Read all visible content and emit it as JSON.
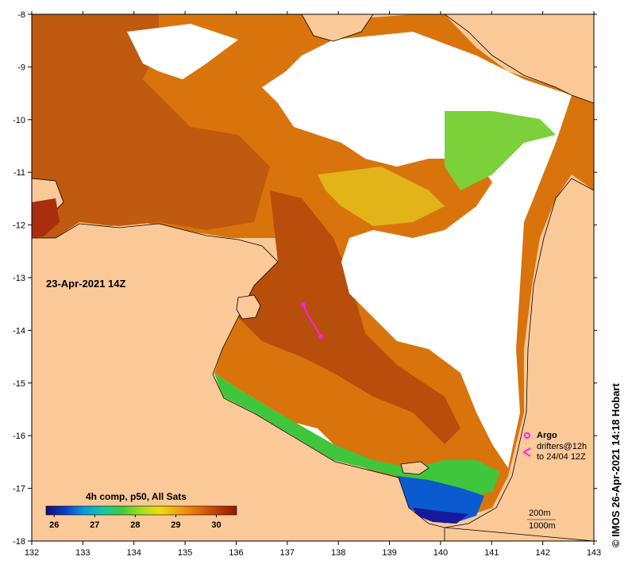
{
  "map": {
    "timestamp_label": "23-Apr-2021 14Z",
    "credit": "© IMOS 26-Apr-2021 14:18 Hobart",
    "lon_ticks": [
      "132",
      "133",
      "134",
      "135",
      "136",
      "137",
      "138",
      "139",
      "140",
      "141",
      "142",
      "143"
    ],
    "lat_ticks": [
      "-8",
      "-9",
      "-10",
      "-11",
      "-12",
      "-13",
      "-14",
      "-15",
      "-16",
      "-17",
      "-18"
    ],
    "lon_range": [
      132,
      143
    ],
    "lat_range": [
      -8,
      -18
    ]
  },
  "legend": {
    "title": "4h comp, p50, All Sats",
    "ticks": [
      "26",
      "27",
      "28",
      "29",
      "30"
    ],
    "argo_label": "Argo",
    "drifters_line1": "drifters@12h",
    "drifters_line2": "to 24/04 12Z",
    "contour_200": "200m",
    "contour_1000": "1000m"
  },
  "colors": {
    "land": "#fbc898",
    "cloud": "#ffffff",
    "sst_warm": "#c65a06",
    "sst_mid": "#e8920a",
    "sst_cool_green": "#3dc23a",
    "sst_cold_blue": "#1030b0",
    "drifter": "#ff20e0",
    "colorbar": [
      "#1a0a6e",
      "#0a3ec8",
      "#0a9ae0",
      "#19c6a0",
      "#3fcc3f",
      "#a6e020",
      "#f0dc10",
      "#f0a010",
      "#e06c08",
      "#c03808",
      "#901808"
    ]
  }
}
